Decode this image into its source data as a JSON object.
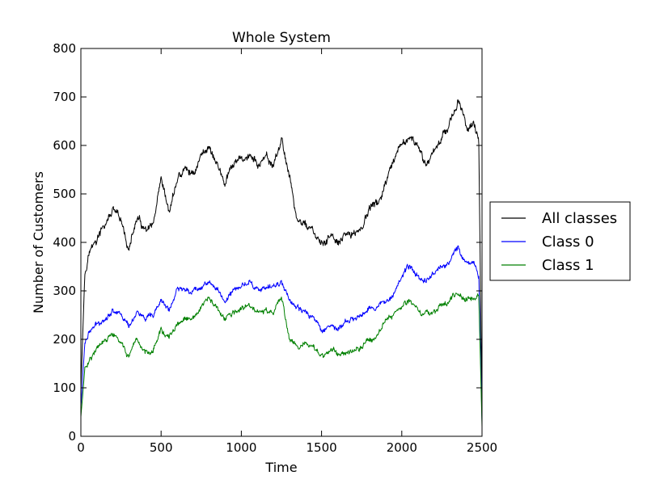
{
  "chart_data": {
    "type": "line",
    "title": "Whole System",
    "xlabel": "Time",
    "ylabel": "Number of Customers",
    "xlim": [
      0,
      2500
    ],
    "ylim": [
      0,
      800
    ],
    "xticks": [
      0,
      500,
      1000,
      1500,
      2000,
      2500
    ],
    "yticks": [
      0,
      100,
      200,
      300,
      400,
      500,
      600,
      700,
      800
    ],
    "grid": false,
    "legend": "outside-right",
    "series": [
      {
        "name": "All classes",
        "color": "#000000",
        "x": [
          0,
          25,
          50,
          100,
          150,
          200,
          250,
          300,
          350,
          400,
          450,
          500,
          550,
          600,
          650,
          700,
          750,
          800,
          850,
          900,
          950,
          1000,
          1050,
          1100,
          1150,
          1200,
          1250,
          1300,
          1350,
          1400,
          1450,
          1500,
          1550,
          1600,
          1650,
          1700,
          1750,
          1800,
          1850,
          1900,
          1950,
          2000,
          2050,
          2100,
          2150,
          2200,
          2250,
          2300,
          2350,
          2400,
          2450,
          2480,
          2500
        ],
        "y": [
          100,
          340,
          380,
          405,
          435,
          465,
          440,
          385,
          450,
          420,
          430,
          520,
          460,
          530,
          550,
          540,
          580,
          600,
          560,
          520,
          560,
          570,
          580,
          560,
          570,
          560,
          610,
          540,
          440,
          440,
          420,
          390,
          415,
          395,
          410,
          420,
          430,
          470,
          480,
          520,
          560,
          600,
          620,
          590,
          560,
          590,
          620,
          650,
          690,
          640,
          650,
          600,
          40
        ]
      },
      {
        "name": "Class 0",
        "color": "#0000ff",
        "x": [
          0,
          25,
          50,
          100,
          150,
          200,
          250,
          300,
          350,
          400,
          450,
          500,
          550,
          600,
          650,
          700,
          750,
          800,
          850,
          900,
          950,
          1000,
          1050,
          1100,
          1150,
          1200,
          1250,
          1300,
          1350,
          1400,
          1450,
          1500,
          1550,
          1600,
          1650,
          1700,
          1750,
          1800,
          1850,
          1900,
          1950,
          2000,
          2050,
          2100,
          2150,
          2200,
          2250,
          2300,
          2350,
          2400,
          2450,
          2480,
          2500
        ],
        "y": [
          60,
          195,
          215,
          230,
          245,
          260,
          255,
          225,
          260,
          240,
          245,
          280,
          260,
          300,
          305,
          300,
          310,
          320,
          300,
          280,
          300,
          310,
          320,
          305,
          300,
          310,
          320,
          285,
          260,
          255,
          245,
          220,
          230,
          220,
          235,
          240,
          250,
          270,
          265,
          280,
          300,
          330,
          350,
          330,
          320,
          340,
          350,
          360,
          390,
          360,
          360,
          330,
          30
        ]
      },
      {
        "name": "Class 1",
        "color": "#008000",
        "x": [
          0,
          25,
          50,
          100,
          150,
          200,
          250,
          300,
          350,
          400,
          450,
          500,
          550,
          600,
          650,
          700,
          750,
          800,
          850,
          900,
          950,
          1000,
          1050,
          1100,
          1150,
          1200,
          1250,
          1300,
          1350,
          1400,
          1450,
          1500,
          1550,
          1600,
          1650,
          1700,
          1750,
          1800,
          1850,
          1900,
          1950,
          2000,
          2050,
          2100,
          2150,
          2200,
          2250,
          2300,
          2350,
          2400,
          2450,
          2480,
          2500
        ],
        "y": [
          40,
          140,
          160,
          180,
          195,
          210,
          190,
          165,
          190,
          175,
          180,
          220,
          200,
          230,
          240,
          240,
          265,
          285,
          260,
          240,
          255,
          260,
          270,
          255,
          260,
          250,
          290,
          200,
          190,
          190,
          180,
          165,
          180,
          170,
          175,
          180,
          185,
          200,
          210,
          240,
          255,
          270,
          280,
          260,
          250,
          260,
          270,
          280,
          295,
          285,
          285,
          290,
          20
        ]
      }
    ]
  }
}
